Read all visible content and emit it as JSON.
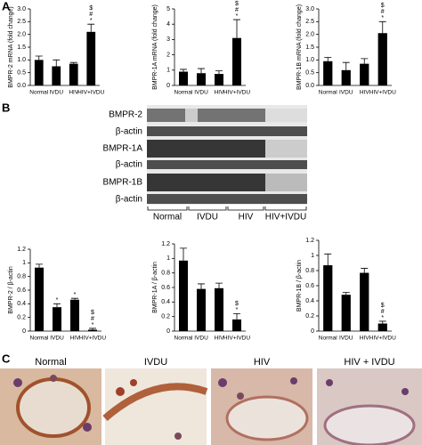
{
  "panels": {
    "a": "A",
    "b": "B",
    "c": "C"
  },
  "blot": {
    "rows": [
      "BMPR-2",
      "β-actin",
      "BMPR-1A",
      "β-actin",
      "BMPR-1B",
      "β-actin"
    ],
    "groups": [
      "Normal",
      "IVDU",
      "HIV",
      "HIV+IVDU"
    ]
  },
  "histology": {
    "titles": [
      "Normal",
      "IVDU",
      "HIV",
      "HIV + IVDU"
    ]
  },
  "chart_data": [
    {
      "type": "bar",
      "ylabel": "BMPR-2 mRNA (fold change)",
      "categories": [
        "Normal",
        "IVDU",
        "HIV",
        "HIV+IVDU"
      ],
      "values": [
        1.0,
        0.75,
        0.85,
        2.1
      ],
      "errors": [
        0.15,
        0.25,
        0.05,
        0.3
      ],
      "annotations": [
        null,
        null,
        null,
        [
          "$",
          "#",
          "*"
        ]
      ],
      "color": "#000000",
      "ylim": [
        0,
        3
      ],
      "yticks": [
        {
          "value": 0,
          "label": "0.0"
        },
        0.5,
        {
          "value": 1,
          "label": "1.0"
        },
        1.5,
        {
          "value": 2,
          "label": "2.0"
        },
        2.5,
        {
          "value": 3,
          "label": "3.0"
        }
      ]
    },
    {
      "type": "bar",
      "ylabel": "BMPR-1A mRNA (fold change)",
      "categories": [
        "Normal",
        "IVDU",
        "HIV",
        "HIV+IVDU"
      ],
      "values": [
        0.9,
        0.8,
        0.75,
        3.1
      ],
      "errors": [
        0.15,
        0.3,
        0.2,
        1.2
      ],
      "annotations": [
        null,
        null,
        null,
        [
          "$",
          "#",
          "*"
        ]
      ],
      "color": "#000000",
      "ylim": [
        0,
        5
      ],
      "yticks": [
        0,
        1,
        2,
        3,
        4,
        5
      ]
    },
    {
      "type": "bar",
      "ylabel": "BMPR-1B mRNA (fold change)",
      "categories": [
        "Normal",
        "IVDU",
        "HIV",
        "HIV+IVDU"
      ],
      "values": [
        0.95,
        0.6,
        0.85,
        2.05
      ],
      "errors": [
        0.15,
        0.3,
        0.2,
        0.45
      ],
      "annotations": [
        null,
        null,
        null,
        [
          "$",
          "#",
          "*"
        ]
      ],
      "color": "#000000",
      "ylim": [
        0,
        3
      ],
      "yticks": [
        {
          "value": 0,
          "label": "0.0"
        },
        0.5,
        {
          "value": 1,
          "label": "1.0"
        },
        1.5,
        {
          "value": 2,
          "label": "2.0"
        },
        2.5,
        {
          "value": 3,
          "label": "3.0"
        }
      ]
    },
    {
      "type": "bar",
      "ylabel": "BMPR-2 / β-actin",
      "categories": [
        "Normal",
        "IVDU",
        "HIV",
        "HIV+IVDU"
      ],
      "values": [
        0.93,
        0.35,
        0.46,
        0.02
      ],
      "errors": [
        0.05,
        0.05,
        0.02,
        0.02
      ],
      "annotations": [
        null,
        [
          "*"
        ],
        [
          "*"
        ],
        [
          "$",
          "#",
          "*"
        ]
      ],
      "color": "#000000",
      "ylim": [
        0,
        1.2
      ],
      "yticks": [
        0,
        0.2,
        0.4,
        0.6,
        0.8,
        1,
        1.2
      ]
    },
    {
      "type": "bar",
      "ylabel": "BMPR-1A / β-actin",
      "categories": [
        "Normal",
        "IVDU",
        "HIV",
        "HIV+IVDU"
      ],
      "values": [
        0.97,
        0.58,
        0.59,
        0.16
      ],
      "errors": [
        0.17,
        0.07,
        0.07,
        0.08
      ],
      "annotations": [
        null,
        null,
        null,
        [
          "$",
          "*"
        ]
      ],
      "color": "#000000",
      "ylim": [
        0,
        1.2
      ],
      "yticks": [
        0,
        0.2,
        0.4,
        0.6,
        0.8,
        1,
        1.2
      ]
    },
    {
      "type": "bar",
      "ylabel": "BMPR-1B / β-actin",
      "categories": [
        "Normal",
        "IVDU",
        "HIV",
        "HIV+IVDU"
      ],
      "values": [
        0.87,
        0.48,
        0.77,
        0.1
      ],
      "errors": [
        0.15,
        0.03,
        0.06,
        0.03
      ],
      "annotations": [
        null,
        null,
        null,
        [
          "$",
          "#",
          "*"
        ]
      ],
      "color": "#000000",
      "ylim": [
        0,
        1.2
      ],
      "yticks": [
        0,
        0.2,
        0.4,
        0.6,
        0.8,
        1,
        1.2
      ]
    }
  ]
}
